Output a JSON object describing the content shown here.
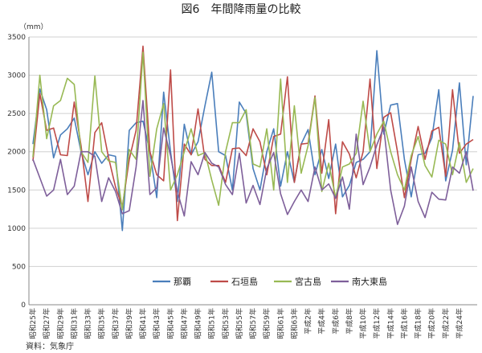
{
  "chart_data": {
    "type": "line",
    "title": "図6　年間降雨量の比較",
    "ylabel": "（mm）",
    "source": "資料：気象庁",
    "ylim": [
      0,
      3500
    ],
    "yticks": [
      0,
      500,
      1000,
      1500,
      2000,
      2500,
      3000,
      3500
    ],
    "grid": true,
    "legend_position": "bottom-center",
    "x": [
      1950,
      1951,
      1952,
      1953,
      1954,
      1955,
      1956,
      1957,
      1958,
      1959,
      1960,
      1961,
      1962,
      1963,
      1964,
      1965,
      1966,
      1967,
      1968,
      1969,
      1970,
      1971,
      1972,
      1973,
      1974,
      1975,
      1976,
      1977,
      1978,
      1979,
      1980,
      1981,
      1982,
      1983,
      1984,
      1985,
      1986,
      1987,
      1988,
      1989,
      1990,
      1991,
      1992,
      1993,
      1994,
      1995,
      1996,
      1997,
      1998,
      1999,
      2000,
      2001,
      2002,
      2003,
      2004,
      2005,
      2006,
      2007,
      2008,
      2009,
      2010,
      2011,
      2012,
      2013,
      2014
    ],
    "x_tick_labels": [
      "昭和25年",
      "昭和27年",
      "昭和29年",
      "昭和31年",
      "昭和33年",
      "昭和35年",
      "昭和37年",
      "昭和39年",
      "昭和41年",
      "昭和43年",
      "昭和45年",
      "昭和47年",
      "昭和49年",
      "昭和51年",
      "昭和53年",
      "昭和55年",
      "昭和57年",
      "昭和59年",
      "昭和61年",
      "昭和63年",
      "平成2年",
      "平成4年",
      "平成6年",
      "平成8年",
      "平成10年",
      "平成12年",
      "平成14年",
      "平成16年",
      "平成18年",
      "平成20年",
      "平成22年",
      "平成24年"
    ],
    "series": [
      {
        "name": "那覇",
        "color": "#4a7ebb",
        "values": [
          2100,
          2820,
          2550,
          1920,
          2220,
          2300,
          2440,
          2000,
          1700,
          2000,
          1850,
          1960,
          1940,
          970,
          2280,
          2380,
          2400,
          2000,
          1400,
          2780,
          2000,
          1350,
          2360,
          1960,
          2130,
          2600,
          3040,
          2000,
          1950,
          1500,
          2650,
          2500,
          1780,
          1500,
          2000,
          2300,
          1550,
          2000,
          1600,
          2100,
          2290,
          1700,
          2030,
          1650,
          2100,
          1410,
          1560,
          1860,
          1900,
          2000,
          3320,
          2230,
          2610,
          2630,
          1900,
          1410,
          1960,
          1980,
          2180,
          2810,
          1620,
          2020,
          2900,
          1830,
          2730
        ]
      },
      {
        "name": "石垣島",
        "color": "#be4b48",
        "values": [
          1880,
          2760,
          2280,
          2310,
          1960,
          1950,
          2650,
          2080,
          1350,
          2250,
          2380,
          1920,
          1540,
          1280,
          1900,
          2280,
          3380,
          2000,
          1700,
          1620,
          3070,
          1100,
          2100,
          1960,
          2560,
          1900,
          1820,
          1820,
          1600,
          2040,
          2050,
          1950,
          2300,
          2130,
          1700,
          2200,
          2230,
          2980,
          1600,
          2100,
          2110,
          2730,
          1720,
          2420,
          1190,
          2130,
          1970,
          1660,
          2000,
          2950,
          1780,
          2450,
          2510,
          2000,
          1400,
          1900,
          2330,
          1900,
          2270,
          2320,
          1680,
          2810,
          1980,
          2100,
          2160
        ]
      },
      {
        "name": "宮古島",
        "color": "#98b954",
        "values": [
          1930,
          3000,
          2170,
          2600,
          2670,
          2960,
          2880,
          2000,
          1860,
          2990,
          2000,
          1880,
          1860,
          1240,
          2030,
          1900,
          3300,
          1680,
          2300,
          2630,
          1500,
          1700,
          2000,
          2300,
          1950,
          1990,
          1630,
          1300,
          2000,
          2380,
          2380,
          2550,
          1840,
          1800,
          2300,
          1500,
          2950,
          1600,
          2600,
          1720,
          2080,
          2710,
          1480,
          1850,
          1400,
          1800,
          1840,
          1980,
          2660,
          2000,
          2230,
          2400,
          2000,
          1700,
          1500,
          1950,
          2200,
          1820,
          1670,
          2150,
          2100,
          1700,
          2120,
          1600,
          1780
        ]
      },
      {
        "name": "南大東島",
        "color": "#7e5f9a",
        "values": [
          1900,
          1660,
          1420,
          1500,
          1900,
          1440,
          1550,
          2000,
          2000,
          1940,
          1350,
          1660,
          1480,
          1190,
          1230,
          1800,
          2670,
          1440,
          1530,
          2310,
          1950,
          1480,
          1160,
          1870,
          1700,
          1990,
          1850,
          1800,
          1570,
          1440,
          1980,
          1330,
          1560,
          1310,
          1780,
          1990,
          1450,
          1180,
          1350,
          1500,
          1350,
          1800,
          1500,
          1580,
          1390,
          1670,
          1250,
          2230,
          1570,
          1800,
          2090,
          2320,
          1500,
          1050,
          1290,
          1800,
          1350,
          1140,
          1470,
          1380,
          1370,
          1800,
          1720,
          2000,
          1490
        ]
      }
    ]
  }
}
